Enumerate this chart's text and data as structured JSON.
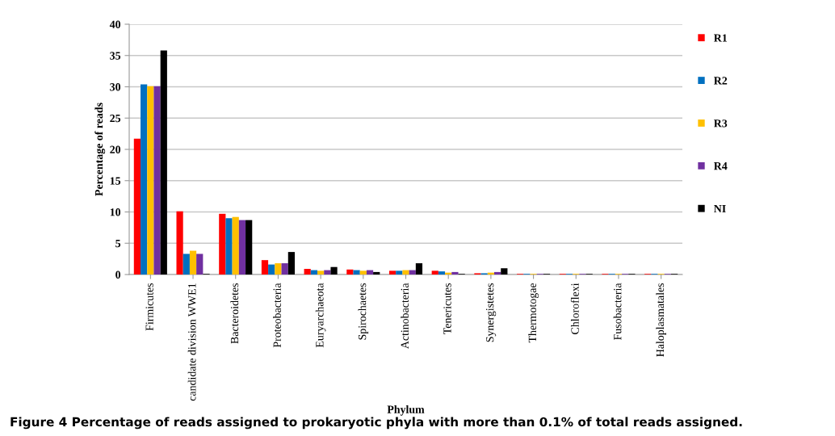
{
  "chart_data": {
    "type": "bar",
    "xlabel": "Phylum",
    "ylabel": "Percentage of reads",
    "categories": [
      "Firmicutes",
      "candidate division WWE1",
      "Bacteroidetes",
      "Proteobacteria",
      "Euryarchaeota",
      "Spirochaetes",
      "Actinobacteria",
      "Tenericutes",
      "Synergistetes",
      "Thermotogae",
      "Chloroflexi",
      "Fusobacteria",
      "Haloplasmatales"
    ],
    "series": [
      {
        "name": "R1",
        "color": "#ff0000",
        "values": [
          21.7,
          10.1,
          9.7,
          2.3,
          0.9,
          0.8,
          0.6,
          0.6,
          0.2,
          0.1,
          0.1,
          0.1,
          0.1
        ]
      },
      {
        "name": "R2",
        "color": "#0070c0",
        "values": [
          30.4,
          3.3,
          9.0,
          1.6,
          0.7,
          0.7,
          0.6,
          0.5,
          0.2,
          0.1,
          0.1,
          0.1,
          0.1
        ]
      },
      {
        "name": "R3",
        "color": "#ffc000",
        "values": [
          30.1,
          3.8,
          9.2,
          1.8,
          0.6,
          0.6,
          0.7,
          0.3,
          0.3,
          0.1,
          0.1,
          0.1,
          0.1
        ]
      },
      {
        "name": "R4",
        "color": "#7030a0",
        "values": [
          30.1,
          3.3,
          8.7,
          1.8,
          0.7,
          0.7,
          0.7,
          0.4,
          0.4,
          0.1,
          0.1,
          0.1,
          0.1
        ]
      },
      {
        "name": "NI",
        "color": "#000000",
        "values": [
          35.8,
          0.1,
          8.7,
          3.6,
          1.2,
          0.4,
          1.8,
          0.1,
          1.0,
          0.1,
          0.1,
          0.1,
          0.1
        ]
      }
    ],
    "ylim": [
      0,
      40
    ],
    "yticks": [
      0,
      5,
      10,
      15,
      20,
      25,
      30,
      35,
      40
    ],
    "grid": "y",
    "legend": "right",
    "annotations": [
      "Figure 4 Percentage of reads assigned to prokaryotic phyla with more than 0.1% of total reads assigned."
    ]
  }
}
